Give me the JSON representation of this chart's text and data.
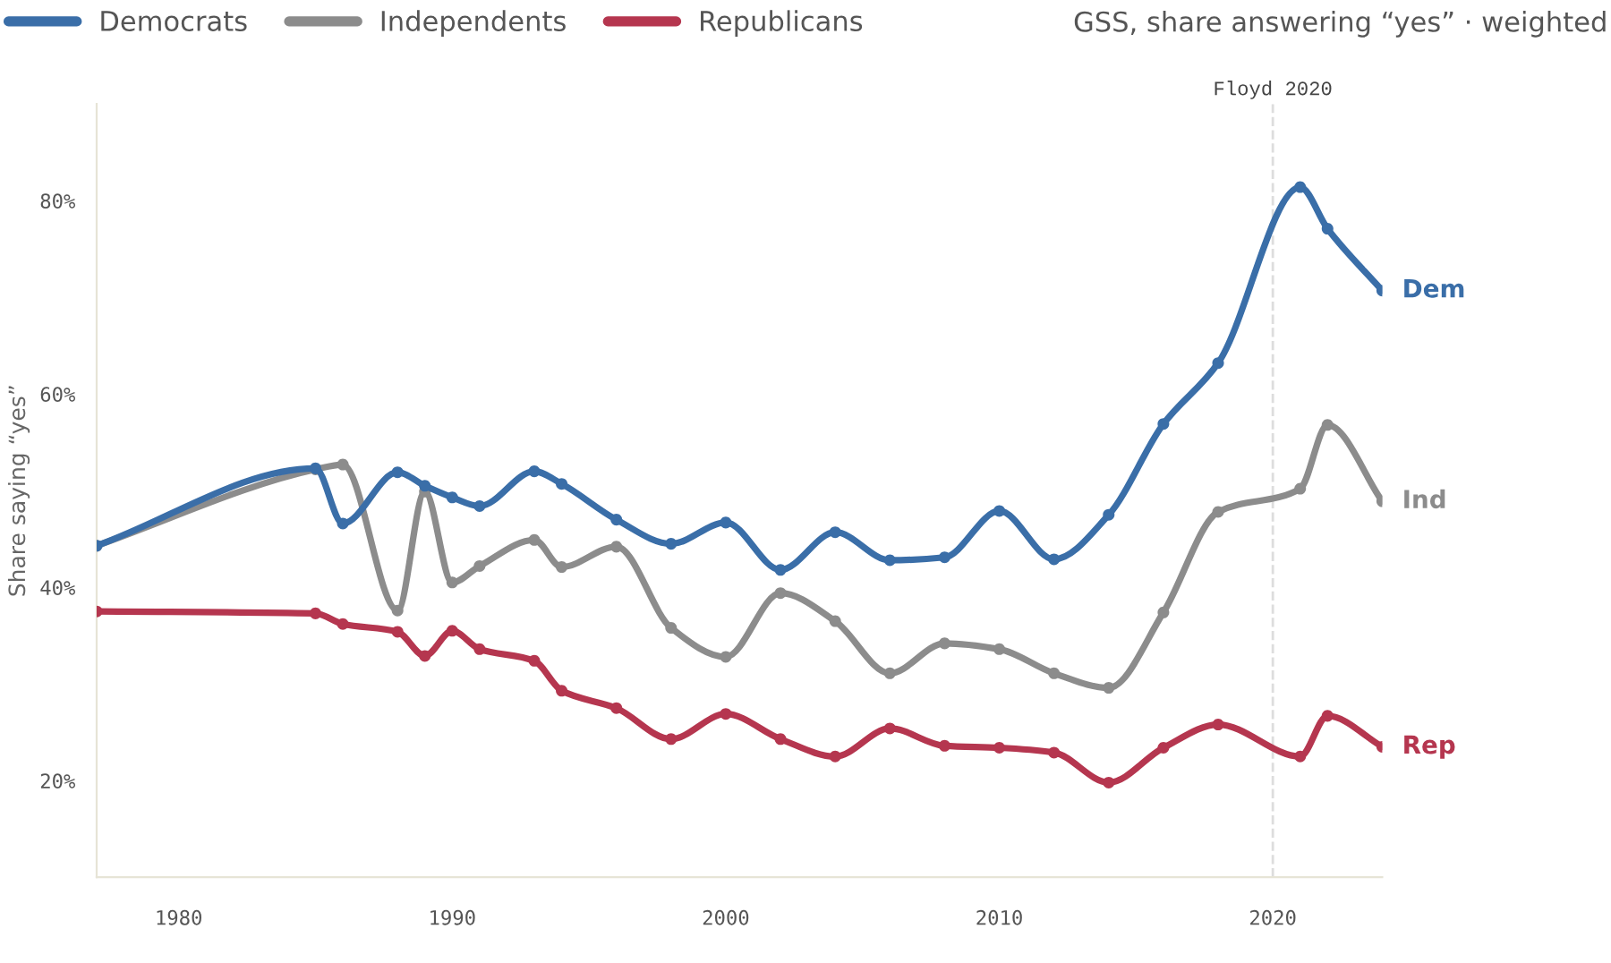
{
  "chart_data": {
    "type": "line",
    "subtitle": "GSS, share answering “yes” · weighted",
    "ylabel": "Share saying “yes”",
    "x": [
      1977,
      1985,
      1986,
      1988,
      1989,
      1990,
      1991,
      1993,
      1994,
      1996,
      1998,
      2000,
      2002,
      2004,
      2006,
      2008,
      2010,
      2012,
      2014,
      2016,
      2018,
      2021,
      2022,
      2024
    ],
    "series": [
      {
        "name": "Democrats",
        "color": "#3a6ea8",
        "values": [
          44.3,
          52.3,
          46.6,
          51.9,
          50.5,
          49.3,
          48.4,
          52.0,
          50.7,
          47.0,
          44.5,
          46.7,
          41.8,
          45.7,
          42.8,
          43.1,
          47.9,
          42.9,
          47.5,
          56.9,
          63.2,
          81.4,
          77.1,
          70.7
        ]
      },
      {
        "name": "Independents",
        "color": "#8c8c8c",
        "values": [
          44.3,
          52.2,
          52.7,
          37.6,
          49.9,
          40.5,
          42.2,
          44.9,
          42.1,
          44.2,
          35.8,
          32.8,
          39.4,
          36.5,
          31.1,
          34.2,
          33.6,
          31.1,
          29.6,
          37.4,
          47.8,
          50.2,
          56.8,
          48.9
        ]
      },
      {
        "name": "Republicans",
        "color": "#b5364f",
        "values": [
          37.5,
          37.3,
          36.2,
          35.4,
          32.9,
          35.5,
          33.6,
          32.4,
          29.3,
          27.5,
          24.3,
          26.9,
          24.3,
          22.5,
          25.4,
          23.6,
          23.4,
          22.9,
          19.8,
          23.4,
          25.8,
          22.5,
          26.7,
          23.5
        ]
      }
    ],
    "annotations": [
      "Dem",
      "Ind",
      "Rep"
    ],
    "ref_lines": [
      {
        "axis": "x",
        "value": 2020,
        "label": "Floyd 2020",
        "color": "#dddddd",
        "line_style": "dashed"
      }
    ],
    "xlim": [
      1977,
      2024
    ],
    "xticks": [
      1980,
      1990,
      2000,
      2010,
      2020
    ],
    "ylim": [
      10,
      90
    ],
    "yticks": [
      {
        "value": 20,
        "label": "20%"
      },
      {
        "value": 40,
        "label": "40%"
      },
      {
        "value": 60,
        "label": "60%"
      },
      {
        "value": 80,
        "label": "80%"
      }
    ],
    "grid": false,
    "legend": "top left",
    "marker": "circle",
    "line_style": "solid"
  }
}
